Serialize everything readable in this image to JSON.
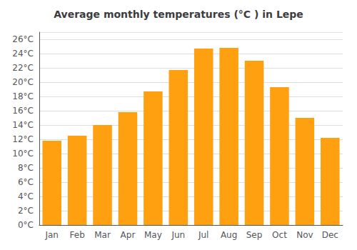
{
  "chart_data": {
    "type": "bar",
    "title": "Average monthly temperatures (°C ) in Lepe",
    "categories": [
      "Jan",
      "Feb",
      "Mar",
      "Apr",
      "May",
      "Jun",
      "Jul",
      "Aug",
      "Sep",
      "Oct",
      "Nov",
      "Dec"
    ],
    "values": [
      11.8,
      12.5,
      14.0,
      15.8,
      18.7,
      21.7,
      24.7,
      24.8,
      23.0,
      19.3,
      15.0,
      12.2
    ],
    "color": "#FFA010",
    "ylim": [
      0,
      27
    ],
    "yticks": [
      {
        "value": 0,
        "label": "0°C"
      },
      {
        "value": 2,
        "label": "2°C"
      },
      {
        "value": 4,
        "label": "4°C"
      },
      {
        "value": 6,
        "label": "6°C"
      },
      {
        "value": 8,
        "label": "8°C"
      },
      {
        "value": 10,
        "label": "10°C"
      },
      {
        "value": 12,
        "label": "12°C"
      },
      {
        "value": 14,
        "label": "14°C"
      },
      {
        "value": 16,
        "label": "16°C"
      },
      {
        "value": 18,
        "label": "18°C"
      },
      {
        "value": 20,
        "label": "20°C"
      },
      {
        "value": 22,
        "label": "22°C"
      },
      {
        "value": 24,
        "label": "24°C"
      },
      {
        "value": 26,
        "label": "26°C"
      }
    ],
    "grid": true
  }
}
